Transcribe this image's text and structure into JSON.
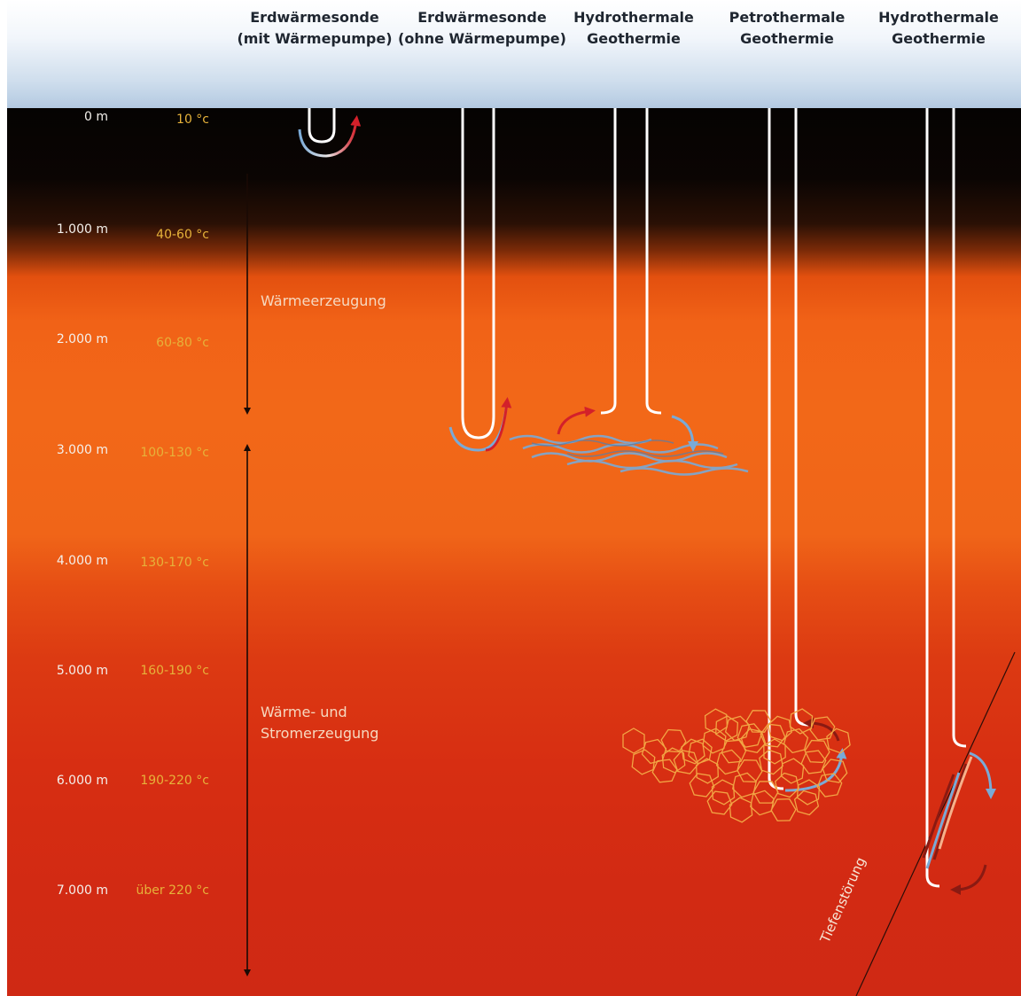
{
  "columns": [
    {
      "line1": "Erdwärmesonde",
      "line2": "(mit Wärmepumpe)"
    },
    {
      "line1": "Erdwärmesonde",
      "line2": "(ohne Wärmepumpe)"
    },
    {
      "line1": "Hydrothermale",
      "line2": "Geothermie"
    },
    {
      "line1": "Petrothermale",
      "line2": "Geothermie"
    },
    {
      "line1": "Hydrothermale",
      "line2": "Geothermie"
    }
  ],
  "depth_scale": [
    {
      "depth": "0 m",
      "temp": "10 °c"
    },
    {
      "depth": "1.000 m",
      "temp": "40-60 °c"
    },
    {
      "depth": "2.000 m",
      "temp": "60-80 °c"
    },
    {
      "depth": "3.000 m",
      "temp": "100-130 °c"
    },
    {
      "depth": "4.000 m",
      "temp": "130-170 °c"
    },
    {
      "depth": "5.000 m",
      "temp": "160-190 °c"
    },
    {
      "depth": "6.000 m",
      "temp": "190-220 °c"
    },
    {
      "depth": "7.000 m",
      "temp": "über 220 °c"
    }
  ],
  "zones": {
    "heat": "Wärmeerzeugung",
    "heat_power_line1": "Wärme- und",
    "heat_power_line2": "Stromerzeugung"
  },
  "fault_label": "Tiefenstörung",
  "colors": {
    "pipe": "#ffffff",
    "hot_arrow": "#d3202a",
    "cold_arrow": "#7aaad6",
    "hexagon": "#f2a544",
    "temp_text": "#e6b23a",
    "sky": "#c2d5ea"
  }
}
